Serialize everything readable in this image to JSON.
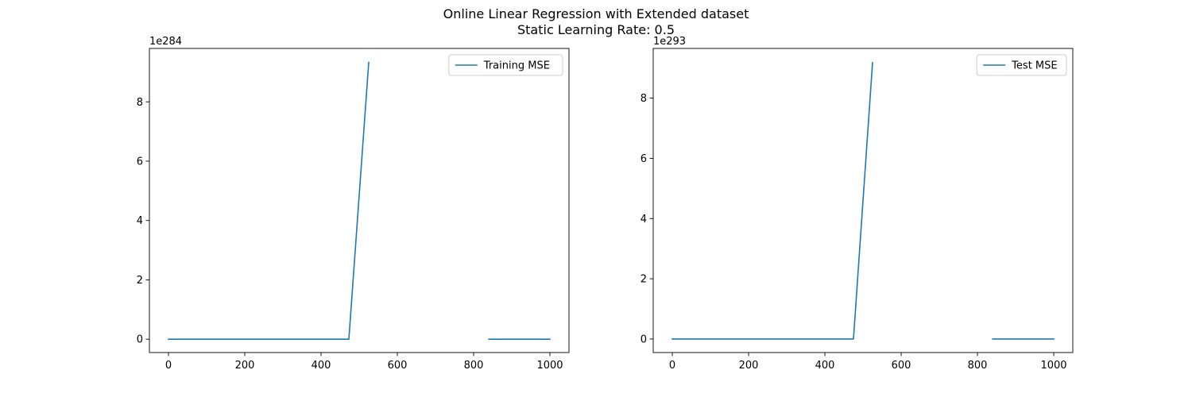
{
  "figure": {
    "title_line1": "Online Linear Regression with Extended dataset",
    "title_line2": "Static Learning Rate: 0.5"
  },
  "chart_data": [
    {
      "type": "line",
      "series": [
        {
          "name": "Training MSE",
          "color": "#1f77b4",
          "segments": [
            {
              "x": [
                0,
                473,
                525
              ],
              "y": [
                0,
                0,
                9.33
              ]
            },
            {
              "x": [
                840,
                1000
              ],
              "y": [
                0,
                0
              ]
            }
          ]
        }
      ],
      "xlim": [
        -50,
        1050
      ],
      "ylim": [
        -0.45,
        9.8
      ],
      "xticks": [
        0,
        200,
        400,
        600,
        800,
        1000
      ],
      "yticks": [
        0,
        2,
        4,
        6,
        8
      ],
      "y_exponent_label": "1e284",
      "legend_position": "upper right",
      "grid": false
    },
    {
      "type": "line",
      "series": [
        {
          "name": "Test MSE",
          "color": "#1f77b4",
          "segments": [
            {
              "x": [
                0,
                475,
                525
              ],
              "y": [
                0,
                0,
                9.18
              ]
            },
            {
              "x": [
                840,
                1000
              ],
              "y": [
                0,
                0
              ]
            }
          ]
        }
      ],
      "xlim": [
        -50,
        1050
      ],
      "ylim": [
        -0.45,
        9.65
      ],
      "xticks": [
        0,
        200,
        400,
        600,
        800,
        1000
      ],
      "yticks": [
        0,
        2,
        4,
        6,
        8
      ],
      "y_exponent_label": "1e293",
      "legend_position": "upper right",
      "grid": false
    }
  ]
}
